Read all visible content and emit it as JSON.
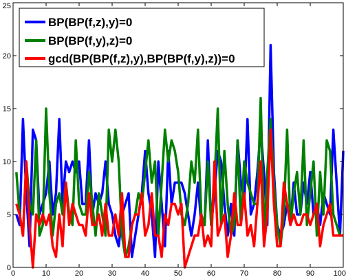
{
  "chart_data": {
    "type": "line",
    "xlim": [
      0,
      100
    ],
    "ylim": [
      0,
      25
    ],
    "x_ticks": [
      0,
      10,
      20,
      30,
      40,
      50,
      60,
      70,
      80,
      90,
      100
    ],
    "y_ticks": [
      0,
      5,
      10,
      15,
      20,
      25
    ],
    "x_tick_labels": [
      "0",
      "10",
      "20",
      "30",
      "40",
      "50",
      "60",
      "70",
      "80",
      "90",
      "100"
    ],
    "y_tick_labels": [
      "0",
      "5",
      "10",
      "15",
      "20",
      "25"
    ],
    "grid": false,
    "legend_position": "top-left",
    "x": [
      1,
      2,
      3,
      4,
      5,
      6,
      7,
      8,
      9,
      10,
      11,
      12,
      13,
      14,
      15,
      16,
      17,
      18,
      19,
      20,
      21,
      22,
      23,
      24,
      25,
      26,
      27,
      28,
      29,
      30,
      31,
      32,
      33,
      34,
      35,
      36,
      37,
      38,
      39,
      40,
      41,
      42,
      43,
      44,
      45,
      46,
      47,
      48,
      49,
      50,
      51,
      52,
      53,
      54,
      55,
      56,
      57,
      58,
      59,
      60,
      61,
      62,
      63,
      64,
      65,
      66,
      67,
      68,
      69,
      70,
      71,
      72,
      73,
      74,
      75,
      76,
      77,
      78,
      79,
      80,
      81,
      82,
      83,
      84,
      85,
      86,
      87,
      88,
      89,
      90,
      91,
      92,
      93,
      94,
      95,
      96,
      97,
      98,
      99,
      100
    ],
    "series": [
      {
        "name": "BP(BP(f,z),y)=0",
        "color": "#0000ff",
        "values": [
          5,
          4,
          14,
          7,
          2,
          13,
          12,
          5,
          6,
          7,
          10,
          5,
          7,
          14,
          6,
          10,
          9,
          10,
          9,
          10,
          6,
          6,
          12,
          5,
          7,
          6,
          7,
          10,
          6,
          5,
          3,
          2,
          5,
          6,
          7,
          1,
          3,
          5,
          7,
          11,
          7,
          5,
          1,
          10,
          6,
          2,
          11,
          6,
          8,
          8,
          8,
          7,
          5,
          3,
          5,
          8,
          4,
          4,
          12,
          4,
          7,
          11,
          10,
          6,
          3,
          6,
          3,
          12,
          8,
          6,
          14,
          5,
          6,
          9,
          13,
          9,
          4,
          21,
          9,
          4,
          3,
          4,
          6,
          4,
          8,
          5,
          5,
          8,
          6,
          9,
          5,
          6,
          4,
          7,
          6,
          5,
          13,
          8,
          3,
          11
        ]
      },
      {
        "name": "BP(BP(f,y),z)=0",
        "color": "#008000",
        "values": [
          9,
          5,
          3,
          10,
          6,
          5,
          12,
          3,
          4,
          15,
          7,
          3,
          6,
          7,
          5,
          8,
          5,
          4,
          12,
          6,
          5,
          5,
          9,
          6,
          3,
          7,
          5,
          3,
          13,
          10,
          13,
          10,
          3,
          1,
          2,
          4,
          5,
          7,
          6,
          9,
          12,
          8,
          10,
          3,
          8,
          13,
          10,
          12,
          11,
          9,
          5,
          4,
          6,
          10,
          8,
          13,
          5,
          4,
          10,
          4,
          8,
          15,
          4,
          11,
          6,
          3,
          4,
          12,
          4,
          10,
          8,
          7,
          6,
          6,
          16,
          3,
          9,
          14,
          8,
          4,
          2,
          5,
          13,
          4,
          7,
          9,
          5,
          12,
          4,
          7,
          10,
          3,
          9,
          5,
          12,
          11,
          5,
          4,
          3,
          3
        ]
      },
      {
        "name": "gcd(BP(BP(f,z),y),BP(BP(f,y),z))=0",
        "color": "#ff0000",
        "values": [
          6,
          5,
          3,
          10,
          4,
          0,
          5,
          4,
          5,
          4,
          5,
          2,
          1,
          5,
          2,
          8,
          4,
          6,
          5,
          4,
          4,
          3,
          7,
          4,
          4,
          5,
          3,
          6,
          3,
          3,
          5,
          3,
          7,
          1,
          1,
          4,
          5,
          5,
          7,
          3,
          4,
          7,
          3,
          3,
          1,
          5,
          4,
          6,
          6,
          5,
          6,
          0,
          1,
          2,
          3,
          3,
          5,
          2,
          3,
          2,
          10,
          3,
          4,
          5,
          1,
          3,
          7,
          4,
          4,
          7,
          3,
          4,
          2,
          6,
          10,
          2,
          5,
          13,
          6,
          2,
          2,
          8,
          6,
          4,
          5,
          4,
          4,
          5,
          5,
          4,
          5,
          6,
          2,
          4,
          5,
          6,
          3,
          3,
          3,
          3
        ]
      }
    ]
  }
}
